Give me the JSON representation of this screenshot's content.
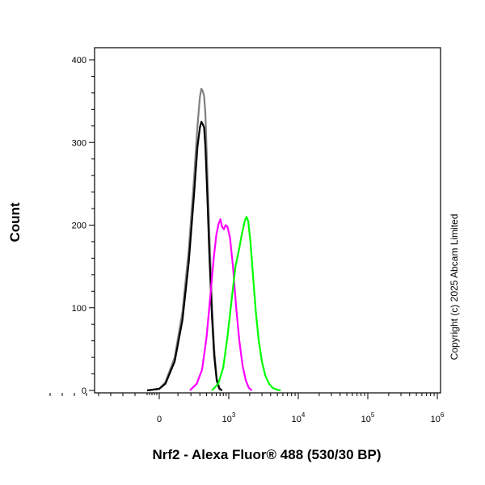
{
  "chart_data": {
    "type": "line",
    "title": "",
    "xlabel": "Nrf2 - Alexa Fluor® 488 (530/30 BP)",
    "ylabel": "Count",
    "x_scale": "biexponential",
    "ylim": [
      0,
      400
    ],
    "y_ticks": [
      0,
      100,
      200,
      300,
      400
    ],
    "x_ticks": [
      {
        "value": 0,
        "label": "0"
      },
      {
        "value": 1000,
        "label": "10",
        "exp": "3"
      },
      {
        "value": 10000,
        "label": "10",
        "exp": "4"
      },
      {
        "value": 100000,
        "label": "10",
        "exp": "5"
      },
      {
        "value": 1000000,
        "label": "10",
        "exp": "6"
      }
    ],
    "grid": false,
    "legend": "none",
    "copyright": "Copyright (c) 2025 Abcam Limited",
    "series": [
      {
        "color": "#808080",
        "points": [
          [
            -100,
            0
          ],
          [
            0,
            2
          ],
          [
            30,
            10
          ],
          [
            80,
            40
          ],
          [
            130,
            95
          ],
          [
            180,
            170
          ],
          [
            230,
            255
          ],
          [
            270,
            320
          ],
          [
            300,
            355
          ],
          [
            320,
            365
          ],
          [
            340,
            362
          ],
          [
            360,
            356
          ],
          [
            380,
            335
          ],
          [
            410,
            270
          ],
          [
            450,
            190
          ],
          [
            500,
            105
          ],
          [
            550,
            50
          ],
          [
            610,
            15
          ],
          [
            680,
            3
          ],
          [
            760,
            0
          ]
        ]
      },
      {
        "color": "#000000",
        "points": [
          [
            -100,
            0
          ],
          [
            0,
            2
          ],
          [
            30,
            8
          ],
          [
            80,
            35
          ],
          [
            130,
            85
          ],
          [
            180,
            155
          ],
          [
            230,
            235
          ],
          [
            270,
            295
          ],
          [
            300,
            318
          ],
          [
            320,
            325
          ],
          [
            340,
            322
          ],
          [
            360,
            318
          ],
          [
            380,
            295
          ],
          [
            410,
            240
          ],
          [
            450,
            165
          ],
          [
            500,
            90
          ],
          [
            550,
            42
          ],
          [
            610,
            12
          ],
          [
            680,
            2
          ],
          [
            760,
            0
          ]
        ]
      },
      {
        "color": "#ff00ff",
        "points": [
          [
            190,
            0
          ],
          [
            260,
            8
          ],
          [
            330,
            25
          ],
          [
            400,
            65
          ],
          [
            470,
            115
          ],
          [
            540,
            160
          ],
          [
            600,
            188
          ],
          [
            660,
            202
          ],
          [
            710,
            207
          ],
          [
            760,
            198
          ],
          [
            820,
            195
          ],
          [
            880,
            200
          ],
          [
            950,
            198
          ],
          [
            1040,
            185
          ],
          [
            1150,
            150
          ],
          [
            1280,
            100
          ],
          [
            1420,
            60
          ],
          [
            1580,
            30
          ],
          [
            1760,
            12
          ],
          [
            1950,
            3
          ],
          [
            2150,
            0
          ]
        ]
      },
      {
        "color": "#00ff00",
        "points": [
          [
            500,
            0
          ],
          [
            650,
            8
          ],
          [
            800,
            28
          ],
          [
            950,
            65
          ],
          [
            1100,
            110
          ],
          [
            1250,
            150
          ],
          [
            1400,
            170
          ],
          [
            1550,
            190
          ],
          [
            1700,
            205
          ],
          [
            1800,
            210
          ],
          [
            1900,
            205
          ],
          [
            2050,
            180
          ],
          [
            2250,
            135
          ],
          [
            2450,
            95
          ],
          [
            2700,
            60
          ],
          [
            3000,
            35
          ],
          [
            3350,
            18
          ],
          [
            3800,
            8
          ],
          [
            4300,
            3
          ],
          [
            4900,
            1
          ],
          [
            5600,
            0
          ]
        ]
      }
    ]
  }
}
